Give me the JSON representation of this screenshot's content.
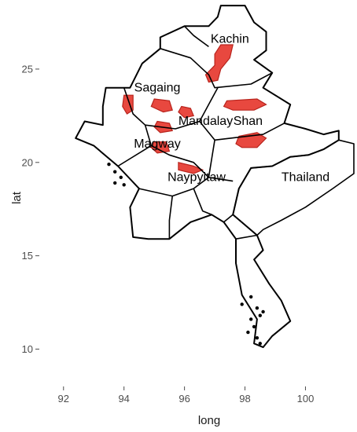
{
  "chart_data": {
    "type": "map",
    "xlabel": "long",
    "ylabel": "lat",
    "xlim": [
      91.2,
      101.6
    ],
    "ylim": [
      8.0,
      28.7
    ],
    "x_ticks": [
      92,
      94,
      96,
      98,
      100
    ],
    "y_ticks": [
      10,
      15,
      20,
      25
    ],
    "grid": false,
    "highlight_color": "#e8483f",
    "highlight_stroke": "#b8241d",
    "region_labels": [
      {
        "text": "Kachin",
        "long": 97.5,
        "lat": 26.4
      },
      {
        "text": "Sagaing",
        "long": 95.1,
        "lat": 23.8
      },
      {
        "text": "Mandalay",
        "long": 96.7,
        "lat": 22.0
      },
      {
        "text": "Shan",
        "long": 98.1,
        "lat": 22.0
      },
      {
        "text": "Magway",
        "long": 95.1,
        "lat": 20.8
      },
      {
        "text": "Naypyitaw",
        "long": 96.4,
        "lat": 19.0
      },
      {
        "text": "Thailand",
        "long": 100.0,
        "lat": 19.0
      }
    ],
    "highlighted_areas": [
      {
        "name": "Kachin",
        "points": [
          [
            97.2,
            26.3
          ],
          [
            97.6,
            26.3
          ],
          [
            97.5,
            25.6
          ],
          [
            97.2,
            25.0
          ],
          [
            97.1,
            24.4
          ],
          [
            96.8,
            24.3
          ],
          [
            96.7,
            24.7
          ],
          [
            97.0,
            25.2
          ],
          [
            97.0,
            25.8
          ]
        ]
      },
      {
        "name": "Sagaing west",
        "points": [
          [
            94.0,
            23.6
          ],
          [
            94.3,
            23.6
          ],
          [
            94.3,
            22.8
          ],
          [
            94.1,
            22.6
          ],
          [
            93.95,
            23.0
          ]
        ]
      },
      {
        "name": "Sagaing central",
        "points": [
          [
            95.0,
            23.4
          ],
          [
            95.5,
            23.3
          ],
          [
            95.6,
            22.8
          ],
          [
            95.3,
            22.7
          ],
          [
            94.9,
            23.0
          ]
        ]
      },
      {
        "name": "Mandalay north",
        "points": [
          [
            95.9,
            23.0
          ],
          [
            96.2,
            22.9
          ],
          [
            96.3,
            22.5
          ],
          [
            96.0,
            22.4
          ],
          [
            95.8,
            22.7
          ]
        ]
      },
      {
        "name": "Mandalay south",
        "points": [
          [
            95.1,
            22.2
          ],
          [
            95.5,
            22.1
          ],
          [
            95.6,
            21.7
          ],
          [
            95.2,
            21.6
          ],
          [
            95.0,
            21.9
          ]
        ]
      },
      {
        "name": "Magway",
        "points": [
          [
            95.0,
            21.1
          ],
          [
            95.4,
            21.1
          ],
          [
            95.5,
            20.6
          ],
          [
            95.1,
            20.5
          ],
          [
            94.9,
            20.8
          ]
        ]
      },
      {
        "name": "Naypyitaw",
        "points": [
          [
            95.8,
            20.0
          ],
          [
            96.3,
            19.8
          ],
          [
            96.6,
            19.6
          ],
          [
            96.3,
            19.4
          ],
          [
            95.8,
            19.6
          ]
        ]
      },
      {
        "name": "Shan north",
        "points": [
          [
            97.4,
            23.3
          ],
          [
            98.4,
            23.4
          ],
          [
            98.7,
            23.1
          ],
          [
            98.3,
            22.8
          ],
          [
            97.6,
            22.8
          ],
          [
            97.3,
            23.0
          ]
        ]
      },
      {
        "name": "Shan south",
        "points": [
          [
            97.8,
            21.4
          ],
          [
            98.4,
            21.6
          ],
          [
            98.7,
            21.3
          ],
          [
            98.4,
            20.8
          ],
          [
            97.9,
            20.8
          ],
          [
            97.7,
            21.0
          ]
        ]
      }
    ]
  }
}
